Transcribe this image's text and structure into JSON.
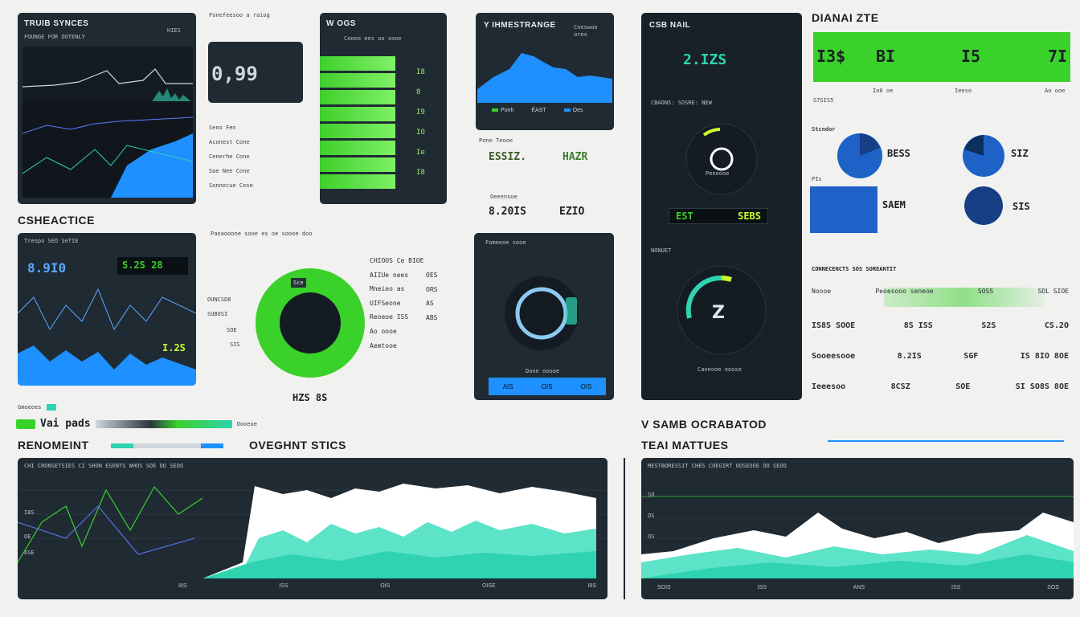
{
  "panels": {
    "p1": {
      "title": "TRUIB SYNCES",
      "sub": "FOUNGE FOR OOTENLY",
      "tag": "HIES"
    },
    "p2": {
      "heading": "Fonefeesoo a raiog",
      "big": "0,99",
      "lines": [
        "Seno Fen",
        "Aconest Cone",
        "Cenerhe Cone",
        "Soe Nee Cone",
        "Sonnecue Cese"
      ]
    },
    "p3": {
      "title": "W OGS",
      "sub": "Cooee ees oo sooe",
      "vals": [
        "I8",
        "8",
        "I9",
        "IO",
        "Ie",
        "I8"
      ]
    },
    "p4": {
      "title": "Y IHMESTRANGE",
      "tag": "Cneswoo ores",
      "legend": [
        "Ponh",
        "ÉAST",
        "Oes"
      ]
    },
    "p4b": {
      "head": "Pone Teooe",
      "left": "ESSIZ.",
      "right": "HAZR",
      "lbl": "Oeeensoe",
      "v1": "8.20IS",
      "v2": "EZIO"
    },
    "p5": {
      "title": "CSB NAIL",
      "value": "2.IZS",
      "sub": "CBAONS: SOSRE: NEW",
      "mid": "Peneooe"
    },
    "p6": {
      "title": "DIANAI ZTE",
      "stats": [
        "I3$",
        "BI",
        "I5",
        "7I"
      ],
      "sublabels": [
        "S7SIS5",
        "Io0 oe",
        "Ieeso",
        "Ao ooe"
      ]
    },
    "sec1": {
      "title": "CSHEACTICE"
    },
    "p7": {
      "title": "Treopo SEO SeTIE",
      "value": "8.9I0",
      "badge": "S.2S 28",
      "tag": "I.2S"
    },
    "p7b": {
      "head": "Paoaooone sooe es oe soooe doo",
      "labels": [
        "OUNCSD8",
        "SUBOSI",
        "SOE",
        "SIS"
      ],
      "legend": "Gmoeoes"
    },
    "donut": {
      "center_tag": "Sce",
      "label": "HZS 8S",
      "pct": 72
    },
    "donut_list": {
      "rows": [
        "CHIOOS Ce BIOE",
        "AIIUe nees",
        "Mneieo as",
        "UIFSeone",
        "Reoeoe ISS",
        "Ao oooe",
        "Aemtooe"
      ],
      "vals": [
        "OES",
        "ORS",
        "AS",
        "ABS"
      ]
    },
    "p8": {
      "title": "Fomeeoe sooe",
      "value": "Dooe ooooe",
      "legend": [
        "AIS",
        "OIS",
        "OIS"
      ]
    },
    "p9": {
      "title": "EST",
      "badge": "SEBS",
      "sub": "NONUET",
      "label": "Caoeooe ooose"
    },
    "p10": {
      "title": "Stcndor",
      "stats": [
        "BESS",
        "SIZ",
        "SAEM",
        "SIS"
      ],
      "item": "PIs"
    },
    "table": {
      "title": "CONNECENCTS SOS SOREANTIT",
      "head": [
        "Noooe",
        "Peoesooo seneoe",
        "SOSS",
        "SOL SIOE"
      ],
      "rows": [
        [
          "IS8S SOOE",
          "8S ISS",
          "S2S",
          "CS.2O"
        ],
        [
          "Sooeesooe",
          "8.2IS",
          "SGF",
          "IS 8IO 8OE"
        ],
        [
          "Ieeesoo",
          "8CSZ",
          "SOE",
          "SI SO8S 8OE"
        ]
      ]
    },
    "legend_line": {
      "label": "Vai pads",
      "tail": "Oooeoe"
    },
    "sec2": {
      "title": "RENOMEINT",
      "title2": "OVEGHNT STICS"
    },
    "sec3": {
      "title": "V SAMB OCRABATOD",
      "title2": "TEAI MATTUES"
    },
    "chart_a": {
      "head": "CHI CRONSETSIES CI SHON ESENTS WHOS SOE OO SEOO",
      "y": [
        "I8S",
        "OE",
        "ASE"
      ],
      "x": [
        "I8S",
        "ISS",
        "OIS",
        "OISE",
        "I8S"
      ]
    },
    "chart_b": {
      "head": "MESTBORESSIT CHES COEGIRT OOSEOOE OO SEOO",
      "y": [
        "SO",
        "OS",
        "OS"
      ],
      "x": [
        "SOIS",
        "ISS",
        "ANS",
        "ISS",
        "SOS"
      ]
    }
  },
  "colors": {
    "green": "#3ad12a",
    "blue": "#1e90ff",
    "panel": "#1f2a33",
    "teal": "#2fd3b0"
  }
}
